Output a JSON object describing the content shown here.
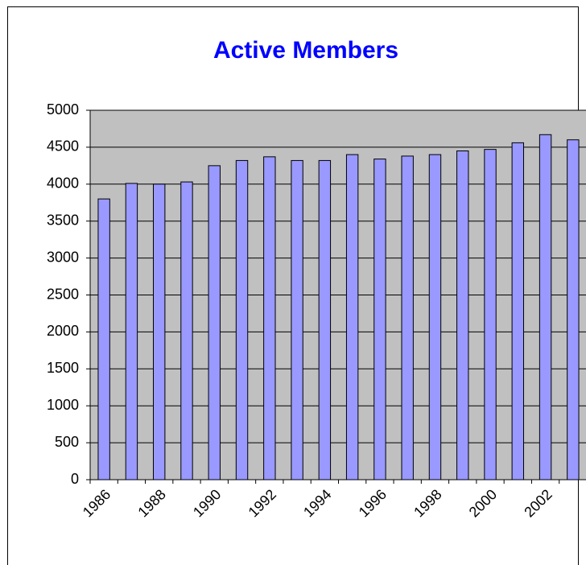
{
  "chart_data": {
    "type": "bar",
    "title": "Active Members",
    "categories": [
      "1986",
      null,
      "1988",
      null,
      "1990",
      null,
      "1992",
      null,
      "1994",
      null,
      "1996",
      null,
      "1998",
      null,
      "2000",
      null,
      "2002",
      null
    ],
    "values": [
      3800,
      4010,
      4000,
      4030,
      4250,
      4320,
      4370,
      4320,
      4320,
      4400,
      4340,
      4380,
      4400,
      4450,
      4470,
      4560,
      4670,
      4600
    ],
    "color": "#9999ff",
    "ylim": [
      0,
      5000
    ],
    "yticks": [
      0,
      500,
      1000,
      1500,
      2000,
      2500,
      3000,
      3500,
      4000,
      4500,
      5000
    ],
    "grid": true
  }
}
